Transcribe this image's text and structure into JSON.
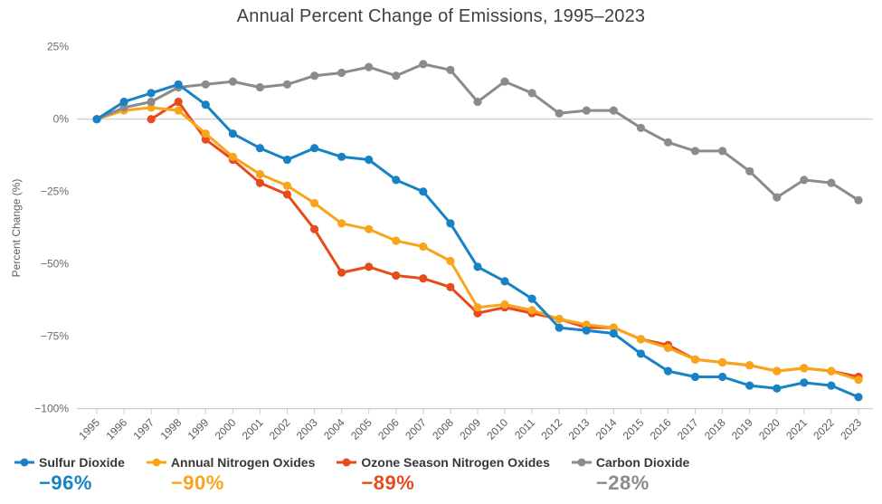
{
  "title": "Annual Percent Change of Emissions, 1995–2023",
  "chart_data": {
    "type": "line",
    "title": "Annual Percent Change of Emissions, 1995–2023",
    "xlabel": "",
    "ylabel": "Percent Change (%)",
    "ylim": [
      -100,
      25
    ],
    "grid": "zero-line-only",
    "legend_position": "bottom",
    "x": [
      1995,
      1996,
      1997,
      1998,
      1999,
      2000,
      2001,
      2002,
      2003,
      2004,
      2005,
      2006,
      2007,
      2008,
      2009,
      2010,
      2011,
      2012,
      2013,
      2014,
      2015,
      2016,
      2017,
      2018,
      2019,
      2020,
      2021,
      2022,
      2023
    ],
    "y_ticks": [
      {
        "label": "25%",
        "value": 25
      },
      {
        "label": "0%",
        "value": 0
      },
      {
        "label": "−25%",
        "value": -25
      },
      {
        "label": "−50%",
        "value": -50
      },
      {
        "label": "−75%",
        "value": -75
      },
      {
        "label": "−100%",
        "value": -100
      }
    ],
    "series": [
      {
        "name": "Sulfur Dioxide",
        "color": "#1782C4",
        "final_change": "−96%",
        "values": [
          0,
          6,
          9,
          12,
          5,
          -5,
          -10,
          -14,
          -10,
          -13,
          -14,
          -21,
          -25,
          -36,
          -51,
          -56,
          -62,
          -72,
          -73,
          -74,
          -81,
          -87,
          -89,
          -89,
          -92,
          -93,
          -91,
          -92,
          -96
        ]
      },
      {
        "name": "Annual Nitrogen Oxides",
        "color": "#F9A51B",
        "final_change": "−90%",
        "values": [
          0,
          3,
          4,
          3,
          -5,
          -13,
          -19,
          -23,
          -29,
          -36,
          -38,
          -42,
          -44,
          -49,
          -65,
          -64,
          -66,
          -69,
          -71,
          -72,
          -76,
          -79,
          -83,
          -84,
          -85,
          -87,
          -86,
          -87,
          -90
        ]
      },
      {
        "name": "Ozone Season Nitrogen Oxides",
        "color": "#E94A1C",
        "final_change": "−89%",
        "values": [
          null,
          null,
          0,
          6,
          -7,
          -14,
          -22,
          -26,
          -38,
          -53,
          -51,
          -54,
          -55,
          -58,
          -67,
          -65,
          -67,
          -69,
          -72,
          -72,
          -76,
          -78,
          -83,
          -84,
          -85,
          -87,
          -86,
          -87,
          -89
        ]
      },
      {
        "name": "Carbon Dioxide",
        "color": "#8B8B8B",
        "final_change": "−28%",
        "values": [
          0,
          4,
          6,
          11,
          12,
          13,
          11,
          12,
          15,
          16,
          18,
          15,
          19,
          17,
          6,
          13,
          9,
          2,
          3,
          3,
          -3,
          -8,
          -11,
          -11,
          -18,
          -27,
          -21,
          -22,
          -28
        ]
      }
    ]
  }
}
